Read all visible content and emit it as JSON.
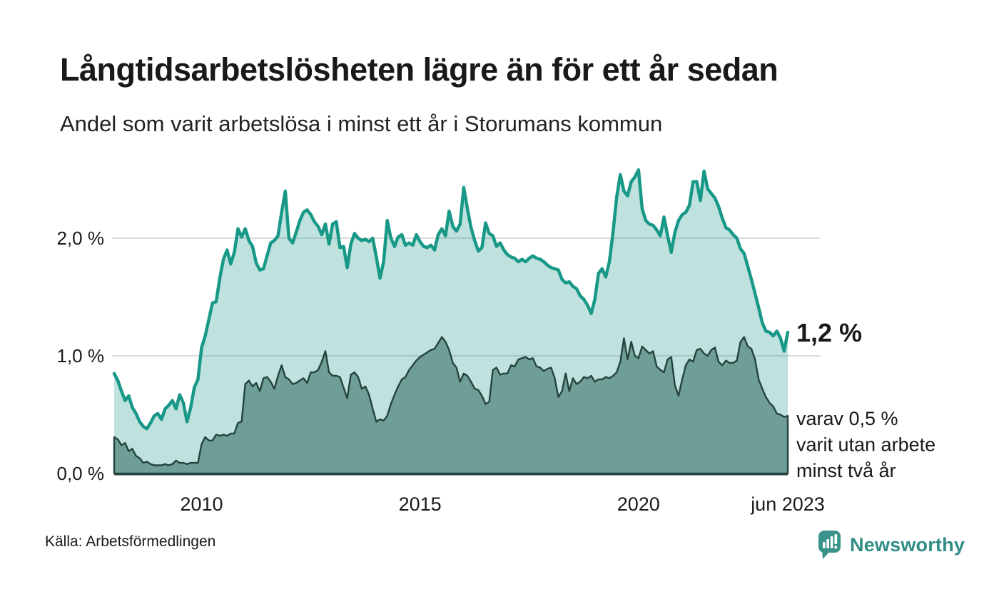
{
  "header": {
    "title": "Långtidsarbetslösheten lägre än för ett år sedan",
    "subtitle": "Andel som varit arbetslösa i minst ett år i Storumans kommun"
  },
  "footer": {
    "source": "Källa: Arbetsförmedlingen",
    "brand": "Newsworthy"
  },
  "colors": {
    "line_teal": "#189887",
    "area_light_fill": "rgba(24,152,135,0.28)",
    "area_dark_fill": "#6f9e97",
    "area_dark_stroke": "#24433e",
    "baseline": "#24433e",
    "gridline": "#dcdcdc",
    "text": "#1a1a1a",
    "brand_teal": "#2f8d85",
    "logo_bubble": "#39938b"
  },
  "chart_data": {
    "type": "area",
    "title": "Långtidsarbetslösheten lägre än för ett år sedan",
    "subtitle": "Andel som varit arbetslösa i minst ett år i Storumans kommun",
    "x_start": "jan 2008",
    "x_end": "jun 2023",
    "x_frequency": "monthly",
    "ylim": [
      0,
      2.75
    ],
    "grid": "horizontal",
    "legend_position": "none",
    "y_ticks": [
      {
        "label": "0,0 %",
        "value": 0
      },
      {
        "label": "1,0 %",
        "value": 1
      },
      {
        "label": "2,0 %",
        "value": 2
      }
    ],
    "x_ticks": [
      {
        "label": "2010",
        "month_index": 24
      },
      {
        "label": "2015",
        "month_index": 84
      },
      {
        "label": "2020",
        "month_index": 144
      },
      {
        "label": "jun 2023",
        "month_index": 185
      }
    ],
    "annotations": {
      "end_label": {
        "text": "1,2 %",
        "value": 1.2
      },
      "sub_label": {
        "lines": [
          "varav 0,5 %",
          "varit utan arbete",
          "minst två år"
        ]
      }
    },
    "series": [
      {
        "name": "andel arbetslösa minst ett år",
        "last_value_label": "1,2 %",
        "values": [
          0.85,
          0.79,
          0.7,
          0.62,
          0.66,
          0.56,
          0.51,
          0.44,
          0.4,
          0.38,
          0.43,
          0.49,
          0.51,
          0.46,
          0.55,
          0.58,
          0.62,
          0.55,
          0.67,
          0.6,
          0.44,
          0.56,
          0.73,
          0.8,
          1.07,
          1.17,
          1.31,
          1.45,
          1.46,
          1.66,
          1.82,
          1.9,
          1.78,
          1.88,
          2.08,
          2.01,
          2.08,
          1.98,
          1.93,
          1.79,
          1.73,
          1.74,
          1.85,
          1.96,
          1.98,
          2.02,
          2.22,
          2.4,
          2.0,
          1.96,
          2.05,
          2.15,
          2.22,
          2.24,
          2.2,
          2.14,
          2.1,
          2.03,
          2.12,
          1.95,
          2.12,
          2.14,
          1.92,
          1.93,
          1.75,
          1.95,
          2.04,
          2.0,
          1.98,
          1.99,
          1.97,
          2.0,
          1.84,
          1.66,
          1.8,
          2.15,
          2.0,
          1.93,
          2.01,
          2.03,
          1.94,
          1.96,
          1.94,
          2.03,
          1.97,
          1.93,
          1.92,
          1.94,
          1.9,
          2.03,
          2.08,
          2.02,
          2.23,
          2.1,
          2.06,
          2.12,
          2.43,
          2.25,
          2.09,
          1.98,
          1.89,
          1.92,
          2.13,
          2.04,
          2.02,
          1.93,
          1.96,
          1.9,
          1.86,
          1.84,
          1.83,
          1.8,
          1.82,
          1.8,
          1.83,
          1.85,
          1.83,
          1.82,
          1.8,
          1.77,
          1.75,
          1.74,
          1.73,
          1.65,
          1.62,
          1.63,
          1.59,
          1.57,
          1.51,
          1.48,
          1.43,
          1.36,
          1.48,
          1.7,
          1.74,
          1.67,
          1.8,
          2.05,
          2.35,
          2.54,
          2.4,
          2.36,
          2.48,
          2.52,
          2.58,
          2.25,
          2.15,
          2.12,
          2.11,
          2.07,
          2.02,
          2.18,
          2.02,
          1.88,
          2.05,
          2.15,
          2.2,
          2.22,
          2.28,
          2.48,
          2.48,
          2.32,
          2.57,
          2.42,
          2.38,
          2.34,
          2.27,
          2.17,
          2.09,
          2.07,
          2.03,
          2.0,
          1.91,
          1.87,
          1.76,
          1.65,
          1.53,
          1.41,
          1.28,
          1.21,
          1.2,
          1.17,
          1.21,
          1.15,
          1.04,
          1.2
        ]
      },
      {
        "name": "andel arbetslösa minst två år",
        "last_value_label": "0,5 %",
        "values": [
          0.31,
          0.29,
          0.24,
          0.26,
          0.19,
          0.21,
          0.15,
          0.13,
          0.09,
          0.1,
          0.08,
          0.07,
          0.07,
          0.07,
          0.08,
          0.07,
          0.08,
          0.11,
          0.09,
          0.09,
          0.08,
          0.09,
          0.09,
          0.09,
          0.25,
          0.31,
          0.28,
          0.28,
          0.33,
          0.32,
          0.33,
          0.32,
          0.34,
          0.34,
          0.43,
          0.44,
          0.76,
          0.79,
          0.74,
          0.77,
          0.7,
          0.81,
          0.82,
          0.78,
          0.72,
          0.83,
          0.92,
          0.82,
          0.8,
          0.76,
          0.77,
          0.79,
          0.81,
          0.77,
          0.86,
          0.86,
          0.88,
          0.95,
          1.04,
          0.86,
          0.83,
          0.83,
          0.82,
          0.73,
          0.64,
          0.84,
          0.86,
          0.82,
          0.72,
          0.74,
          0.67,
          0.55,
          0.44,
          0.46,
          0.45,
          0.49,
          0.59,
          0.67,
          0.74,
          0.8,
          0.82,
          0.88,
          0.92,
          0.96,
          0.99,
          1.01,
          1.03,
          1.05,
          1.06,
          1.11,
          1.16,
          1.12,
          1.05,
          0.94,
          0.9,
          0.78,
          0.85,
          0.83,
          0.78,
          0.72,
          0.71,
          0.66,
          0.59,
          0.61,
          0.88,
          0.9,
          0.84,
          0.85,
          0.85,
          0.92,
          0.91,
          0.97,
          0.98,
          0.99,
          0.97,
          0.98,
          0.91,
          0.9,
          0.87,
          0.89,
          0.9,
          0.81,
          0.65,
          0.7,
          0.85,
          0.7,
          0.81,
          0.76,
          0.78,
          0.82,
          0.81,
          0.83,
          0.78,
          0.8,
          0.8,
          0.82,
          0.81,
          0.83,
          0.86,
          0.95,
          1.15,
          0.97,
          1.12,
          1.0,
          0.98,
          1.08,
          1.05,
          1.02,
          1.04,
          0.91,
          0.88,
          0.86,
          0.97,
          0.99,
          0.75,
          0.66,
          0.8,
          0.92,
          0.97,
          0.95,
          1.05,
          1.06,
          1.02,
          1.0,
          1.05,
          1.07,
          0.95,
          0.92,
          0.96,
          0.94,
          0.94,
          0.96,
          1.12,
          1.16,
          1.08,
          1.06,
          0.97,
          0.8,
          0.72,
          0.65,
          0.6,
          0.57,
          0.51,
          0.5,
          0.48,
          0.49
        ]
      }
    ]
  }
}
